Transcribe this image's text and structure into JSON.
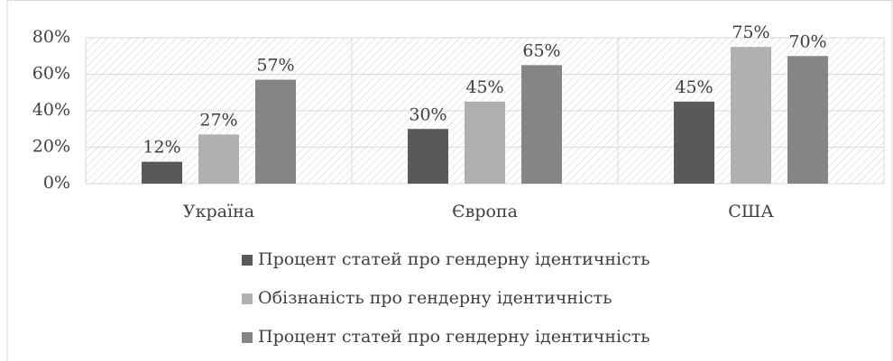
{
  "chart_data": {
    "type": "bar",
    "categories": [
      "Україна",
      "Європа",
      "США"
    ],
    "series": [
      {
        "name": "Процент статей про гендерну ідентичність",
        "color": "#595959",
        "values": [
          12,
          30,
          45
        ],
        "value_labels": [
          "12%",
          "30%",
          "45%"
        ]
      },
      {
        "name": "Обізнаність про гендерну ідентичність",
        "color": "#b0b0b0",
        "values": [
          27,
          45,
          75
        ],
        "value_labels": [
          "27%",
          "45%",
          "75%"
        ]
      },
      {
        "name": "Процент статей про гендерну ідентичність",
        "color": "#858585",
        "values": [
          57,
          65,
          70
        ],
        "value_labels": [
          "57%",
          "65%",
          "70%"
        ]
      }
    ],
    "ylim": [
      0,
      80
    ],
    "yticks": [
      {
        "value": 0,
        "label": "0%"
      },
      {
        "value": 20,
        "label": "20%"
      },
      {
        "value": 40,
        "label": "40%"
      },
      {
        "value": 60,
        "label": "60%"
      },
      {
        "value": 80,
        "label": "80%"
      }
    ],
    "grid": true,
    "legend": "bottom"
  }
}
